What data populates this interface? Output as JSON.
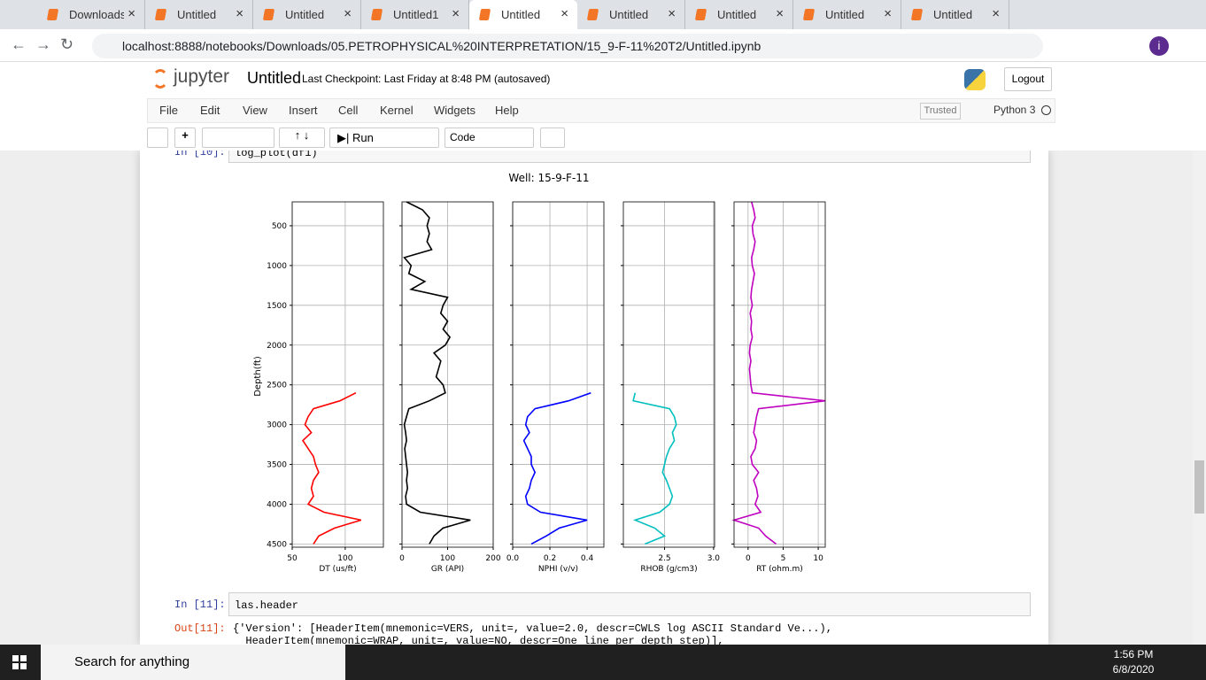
{
  "browser": {
    "tabs": [
      "Downloads",
      "Untitled",
      "Untitled",
      "Untitled1",
      "Untitled",
      "Untitled",
      "Untitled",
      "Untitled",
      "Untitled"
    ],
    "url": "localhost:8888/notebooks/Downloads/05.PETROPHYSICAL%20INTERPRETATION/15_9-F-11%20T2/Untitled.ipynb",
    "profile": "i"
  },
  "notebook": {
    "logo": "jupyter",
    "name": "Untitled",
    "checkpoint": "Last Checkpoint: Last Friday at 8:48 PM",
    "autosave": "(autosaved)",
    "logout": "Logout",
    "menu": [
      "File",
      "Edit",
      "View",
      "Insert",
      "Cell",
      "Kernel",
      "Widgets",
      "Help"
    ],
    "trusted": "Trusted",
    "kernel": "Python 3",
    "run": "Run",
    "cell_type": "Code",
    "cells": [
      {
        "prompt": "In [10]:",
        "code": "log_plot(df1)"
      },
      {
        "prompt": "In [11]:",
        "code": "las.header",
        "out_prompt": "Out[11]:",
        "output": [
          "{'Version': [HeaderItem(mnemonic=VERS, unit=, value=2.0, descr=CWLS log ASCII Standard Ve...),",
          "  HeaderItem(mnemonic=WRAP, unit=, value=NO, descr=One line per depth step)],"
        ]
      }
    ]
  },
  "chart_data": {
    "type": "well-log",
    "title": "Well: 15-9-F-11",
    "ylabel": "Depth(ft)",
    "ylim": [
      200,
      4540
    ],
    "inverted": true,
    "yticks": [
      500,
      1000,
      1500,
      2000,
      2500,
      3000,
      3500,
      4000,
      4500
    ],
    "grid": true,
    "depth": [
      200,
      300,
      400,
      500,
      600,
      700,
      800,
      900,
      1000,
      1100,
      1200,
      1300,
      1400,
      1500,
      1600,
      1700,
      1800,
      1900,
      2000,
      2100,
      2200,
      2300,
      2400,
      2500,
      2600,
      2700,
      2800,
      2900,
      3000,
      3100,
      3200,
      3300,
      3400,
      3500,
      3600,
      3700,
      3800,
      3900,
      4000,
      4100,
      4200,
      4300,
      4400,
      4500
    ],
    "tracks": [
      {
        "name": "DT (us/ft)",
        "color": "#ff0000",
        "xlim": [
          50,
          136
        ],
        "xticks": [
          50,
          100
        ],
        "values": [
          null,
          null,
          null,
          null,
          null,
          null,
          null,
          null,
          null,
          null,
          null,
          null,
          null,
          null,
          null,
          null,
          null,
          null,
          null,
          null,
          null,
          null,
          null,
          null,
          110,
          95,
          70,
          65,
          62,
          68,
          60,
          65,
          70,
          72,
          75,
          70,
          68,
          70,
          65,
          80,
          115,
          90,
          75,
          70
        ]
      },
      {
        "name": "GR (API)",
        "color": "#000000",
        "xlim": [
          0,
          200
        ],
        "xticks": [
          0,
          100,
          200
        ],
        "values": [
          10,
          45,
          60,
          55,
          60,
          55,
          65,
          5,
          20,
          15,
          50,
          20,
          100,
          90,
          85,
          100,
          90,
          105,
          95,
          70,
          85,
          80,
          75,
          90,
          95,
          60,
          15,
          10,
          5,
          8,
          10,
          6,
          8,
          10,
          12,
          10,
          12,
          8,
          10,
          40,
          150,
          90,
          70,
          60
        ]
      },
      {
        "name": "NPHI (v/v)",
        "color": "#0000ff",
        "xlim": [
          0,
          0.49
        ],
        "xticks": [
          {
            "value": 0,
            "label": "0.0"
          },
          0.2,
          0.4
        ],
        "values": [
          null,
          null,
          null,
          null,
          null,
          null,
          null,
          null,
          null,
          null,
          null,
          null,
          null,
          null,
          null,
          null,
          null,
          null,
          null,
          null,
          null,
          null,
          null,
          null,
          0.42,
          0.3,
          0.12,
          0.08,
          0.07,
          0.09,
          0.06,
          0.08,
          0.1,
          0.1,
          0.12,
          0.1,
          0.09,
          0.07,
          0.08,
          0.15,
          0.4,
          0.25,
          0.18,
          0.1
        ]
      },
      {
        "name": "RHOB (g/cm3)",
        "color": "#00bfbf",
        "xlim": [
          2.08,
          3.01
        ],
        "xticks": [
          2.5,
          {
            "value": 3,
            "label": "3.0"
          }
        ],
        "values": [
          null,
          null,
          null,
          null,
          null,
          null,
          null,
          null,
          null,
          null,
          null,
          null,
          null,
          null,
          null,
          null,
          null,
          null,
          null,
          null,
          null,
          null,
          null,
          null,
          2.2,
          2.18,
          2.55,
          2.6,
          2.62,
          2.58,
          2.6,
          2.55,
          2.52,
          2.5,
          2.48,
          2.52,
          2.55,
          2.58,
          2.55,
          2.45,
          2.2,
          2.4,
          2.5,
          2.3
        ]
      },
      {
        "name": "RT (ohm.m)",
        "color": "#bf00bf",
        "xlim": [
          -2,
          11
        ],
        "xticks": [
          0,
          5,
          10
        ],
        "values": [
          0.5,
          0.8,
          1.0,
          0.6,
          0.7,
          1.0,
          0.8,
          0.5,
          0.6,
          0.9,
          0.7,
          0.5,
          0.4,
          0.6,
          0.3,
          0.5,
          0.4,
          0.6,
          0.3,
          0.2,
          0.4,
          0.2,
          0.3,
          0.4,
          0.6,
          11,
          1.5,
          1.2,
          1.0,
          0.8,
          1.2,
          1.0,
          0.4,
          0.6,
          1.5,
          0.8,
          1.2,
          1.4,
          1.0,
          1.8,
          -2,
          1.5,
          2.5,
          4.0
        ]
      }
    ]
  },
  "taskbar": {
    "search": "Search for anything",
    "time": "1:56 PM",
    "date": "6/8/2020"
  }
}
